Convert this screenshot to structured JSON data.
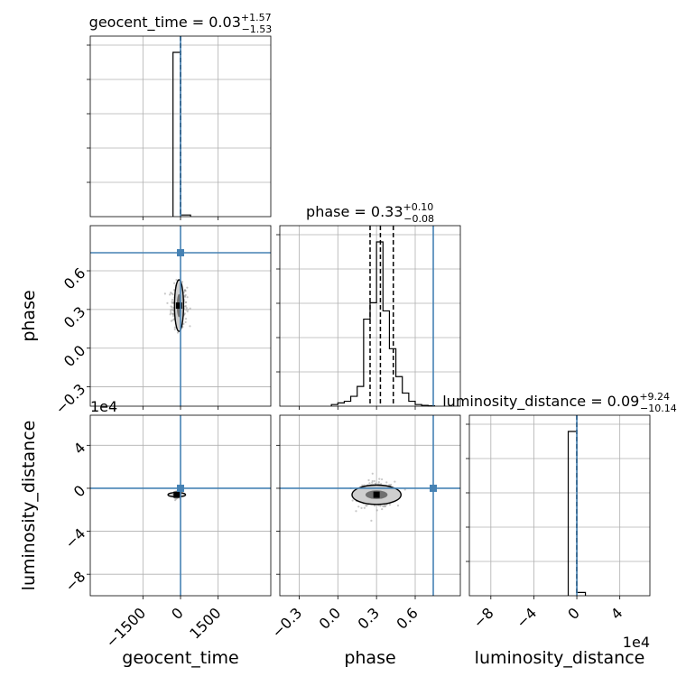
{
  "chart_data": {
    "type": "corner",
    "truth_color": "#4682b4",
    "grid": true,
    "parameters": [
      {
        "name": "geocent_time",
        "label": "geocent_time",
        "title": {
          "prefix": "geocent_time = ",
          "median": "0.03",
          "plus": "+1.57",
          "minus": "−1.53"
        },
        "range": [
          -3600,
          3600
        ],
        "ticks": [
          -1500,
          0,
          1500
        ],
        "tick_labels": [
          "−1500",
          "0",
          "1500"
        ],
        "median": 0.03,
        "quantiles": [
          -1.5,
          0.03,
          1.6
        ],
        "truth": 0,
        "hist": {
          "edges": [
            -300,
            0,
            400
          ],
          "counts": [
            1,
            0.01
          ]
        }
      },
      {
        "name": "phase",
        "label": "phase",
        "title": {
          "prefix": "phase = ",
          "median": "0.33",
          "plus": "+0.10",
          "minus": "−0.08"
        },
        "range": [
          -0.45,
          0.95
        ],
        "ticks": [
          -0.3,
          0,
          0.3,
          0.6
        ],
        "tick_labels": [
          "−0.3",
          "0.0",
          "0.3",
          "0.6"
        ],
        "median": 0.33,
        "quantiles": [
          0.25,
          0.33,
          0.43
        ],
        "truth": 0.74,
        "hist": {
          "edges": [
            -0.05,
            0.0,
            0.05,
            0.1,
            0.15,
            0.2,
            0.25,
            0.3,
            0.35,
            0.4,
            0.45,
            0.5,
            0.55,
            0.6,
            0.65,
            0.7,
            0.75
          ],
          "counts": [
            0.01,
            0.02,
            0.03,
            0.06,
            0.12,
            0.53,
            0.63,
            1.0,
            0.58,
            0.35,
            0.18,
            0.08,
            0.03,
            0.01,
            0.005,
            0.002
          ]
        }
      },
      {
        "name": "luminosity_distance",
        "label": "luminosity_distance",
        "title": {
          "prefix": "luminosity_distance = ",
          "median": "0.09",
          "plus": "+9.24",
          "minus": "−10.14"
        },
        "range": [
          -100000,
          68000
        ],
        "ticks": [
          -80000,
          -40000,
          0,
          40000
        ],
        "tick_labels": [
          "−8",
          "−4",
          "0",
          "4"
        ],
        "offset_label": "1e4",
        "median": 0.09,
        "quantiles": [
          -10.05,
          0.09,
          9.33
        ],
        "truth": 0,
        "hist": {
          "edges": [
            -8000,
            0,
            8000
          ],
          "counts": [
            1,
            0.02
          ]
        }
      }
    ],
    "pairs": [
      {
        "x": "geocent_time",
        "y": "phase",
        "peak": [
          -60,
          0.33
        ],
        "spread": [
          160,
          0.08
        ],
        "contour": {
          "half_width": 180,
          "half_height": 0.2
        },
        "samples": 260
      },
      {
        "x": "geocent_time",
        "y": "luminosity_distance",
        "peak": [
          -150,
          -6000
        ],
        "spread": [
          60,
          1500
        ],
        "contour": {
          "half_width": 350,
          "half_height": 1200
        },
        "samples": 60
      },
      {
        "x": "phase",
        "y": "luminosity_distance",
        "peak": [
          0.3,
          -6000
        ],
        "spread": [
          0.07,
          6000
        ],
        "contour": {
          "half_width": 0.19,
          "half_height": 9000
        },
        "samples": 320
      }
    ]
  }
}
